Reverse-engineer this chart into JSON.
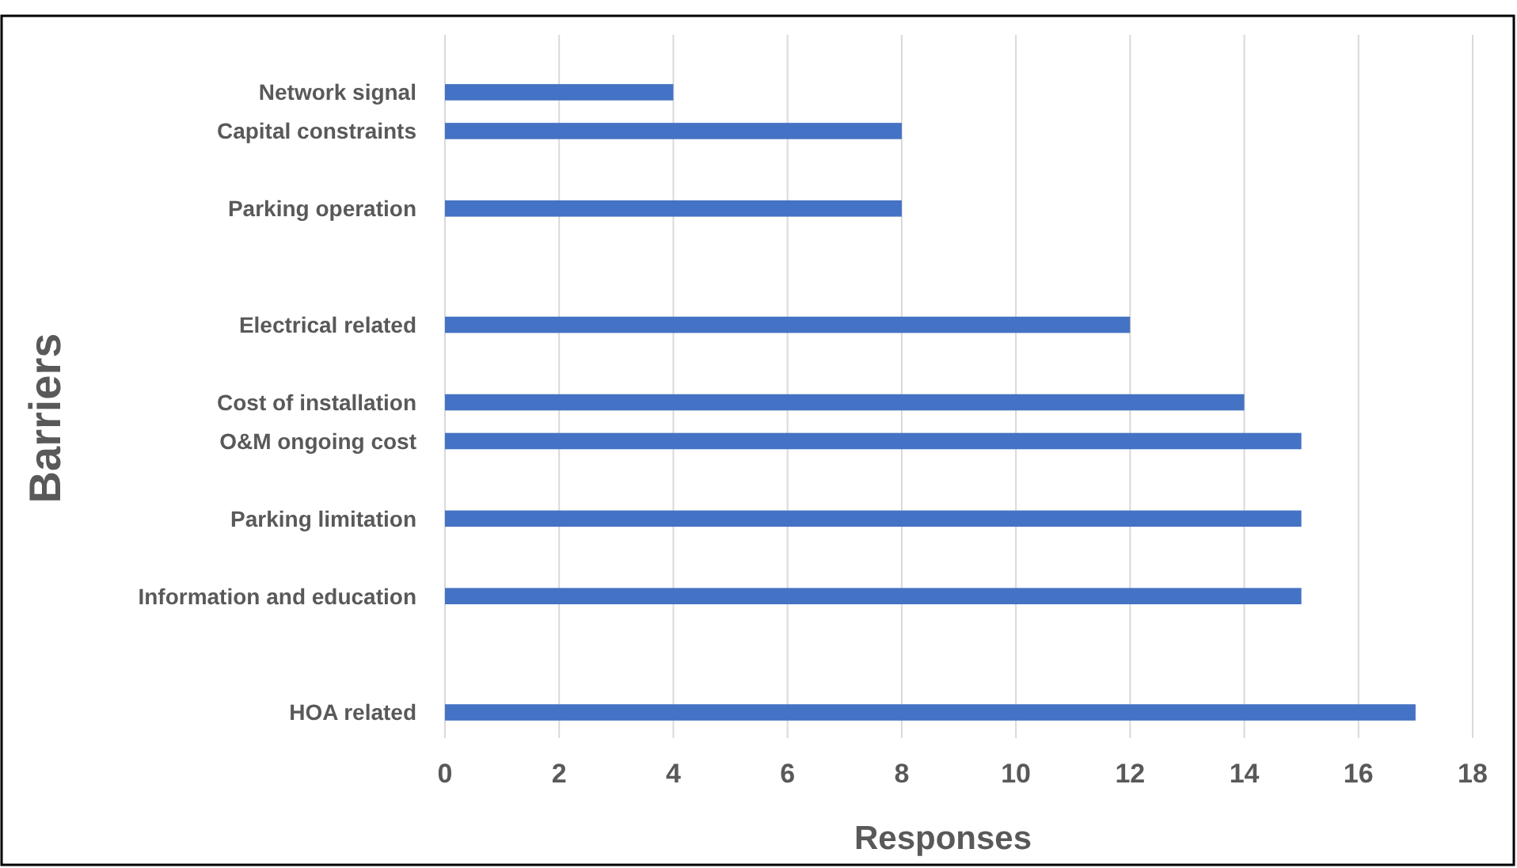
{
  "chart_data": {
    "type": "bar",
    "orientation": "horizontal",
    "xlabel": "Responses",
    "ylabel": "Barriers",
    "categories": [
      "Network signal",
      "Capital constraints",
      null,
      "Parking operation",
      null,
      null,
      "Electrical related",
      null,
      "Cost of installation",
      "O&M ongoing cost",
      null,
      "Parking limitation",
      null,
      "Information and education",
      null,
      null,
      "HOA related"
    ],
    "values": [
      4,
      8,
      null,
      8,
      null,
      null,
      12,
      null,
      14,
      15,
      null,
      15,
      null,
      15,
      null,
      null,
      17
    ],
    "color": "#4472c4",
    "xlim": [
      0,
      18
    ],
    "xticks": [
      0,
      2,
      4,
      6,
      8,
      10,
      12,
      14,
      16,
      18
    ],
    "grid": "x"
  }
}
